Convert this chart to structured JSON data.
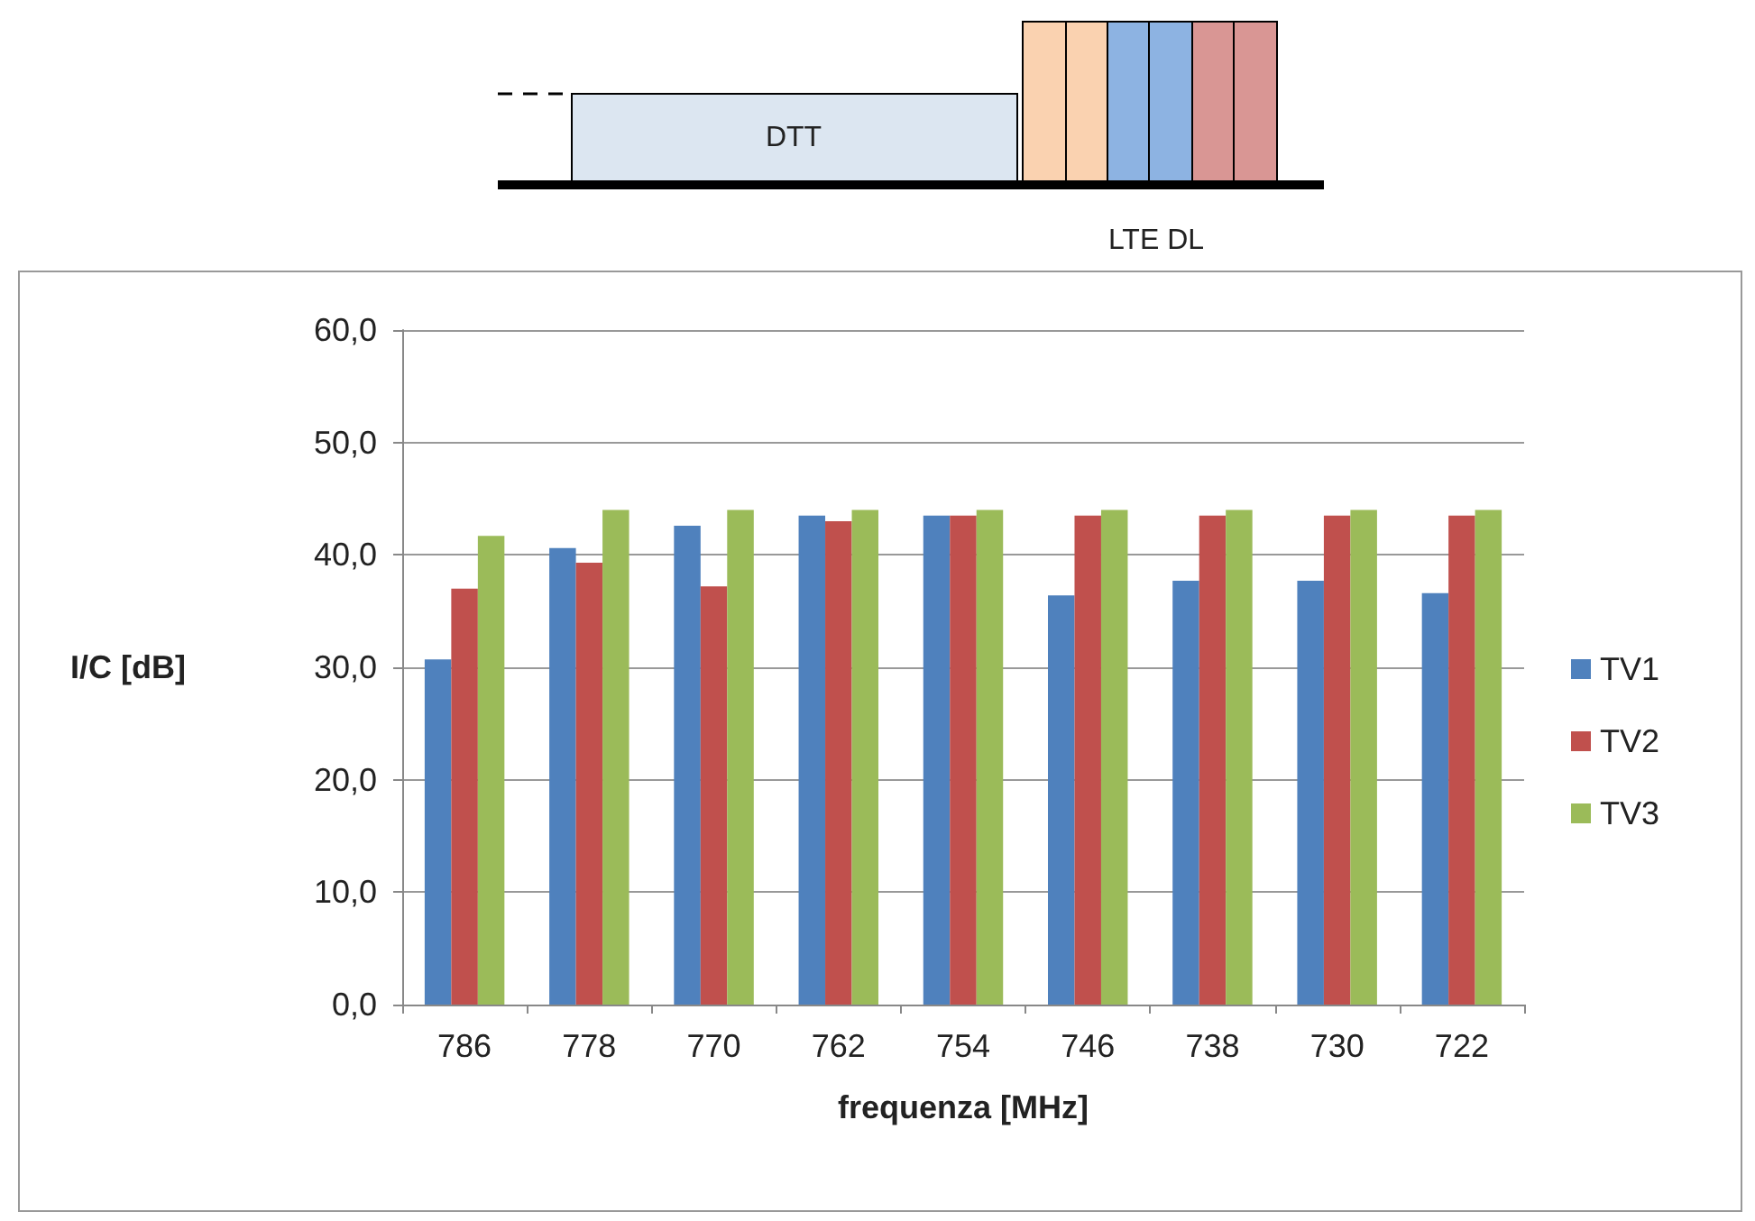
{
  "chart_data": {
    "type": "bar",
    "xlabel": "frequenza [MHz]",
    "ylabel": "I/C [dB]",
    "annotations": [
      "DTT",
      "LTE DL"
    ],
    "categories": [
      "786",
      "778",
      "770",
      "762",
      "754",
      "746",
      "738",
      "730",
      "722"
    ],
    "series": [
      {
        "name": "TV1",
        "color": "#4f81bd",
        "values": [
          30.7,
          40.6,
          42.6,
          43.5,
          43.5,
          36.4,
          37.7,
          37.7,
          36.6
        ]
      },
      {
        "name": "TV2",
        "color": "#c0504d",
        "values": [
          37.0,
          39.3,
          37.2,
          43.0,
          43.5,
          43.5,
          43.5,
          43.5,
          43.5
        ]
      },
      {
        "name": "TV3",
        "color": "#9bbb59",
        "values": [
          41.7,
          44.0,
          44.0,
          44.0,
          44.0,
          44.0,
          44.0,
          44.0,
          44.0
        ]
      }
    ],
    "ylim": [
      0,
      60
    ],
    "yticks": [
      {
        "value": 0,
        "label": "0,0"
      },
      {
        "value": 10,
        "label": "10,0"
      },
      {
        "value": 20,
        "label": "20,0"
      },
      {
        "value": 30,
        "label": "30,0"
      },
      {
        "value": 40,
        "label": "40,0"
      },
      {
        "value": 50,
        "label": "50,0"
      },
      {
        "value": 60,
        "label": "60,0"
      }
    ],
    "grid": "y",
    "legend": "right"
  }
}
